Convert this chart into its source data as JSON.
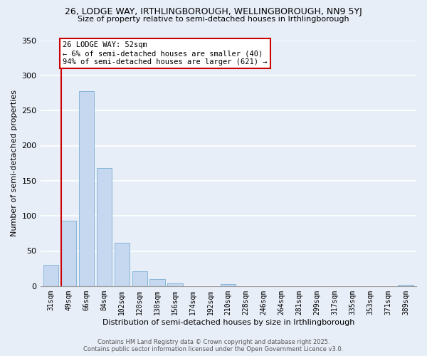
{
  "title_line1": "26, LODGE WAY, IRTHLINGBOROUGH, WELLINGBOROUGH, NN9 5YJ",
  "title_line2": "Size of property relative to semi-detached houses in Irthlingborough",
  "xlabel": "Distribution of semi-detached houses by size in Irthlingborough",
  "ylabel": "Number of semi-detached properties",
  "bar_labels": [
    "31sqm",
    "49sqm",
    "66sqm",
    "84sqm",
    "102sqm",
    "120sqm",
    "138sqm",
    "156sqm",
    "174sqm",
    "192sqm",
    "210sqm",
    "228sqm",
    "246sqm",
    "264sqm",
    "281sqm",
    "299sqm",
    "317sqm",
    "335sqm",
    "353sqm",
    "371sqm",
    "389sqm"
  ],
  "bar_values": [
    30,
    93,
    278,
    168,
    62,
    21,
    10,
    4,
    0,
    0,
    3,
    0,
    0,
    0,
    0,
    0,
    0,
    0,
    0,
    0,
    2
  ],
  "bar_color": "#c5d8f0",
  "bar_edge_color": "#7bafd4",
  "ylim": [
    0,
    350
  ],
  "yticks": [
    0,
    50,
    100,
    150,
    200,
    250,
    300,
    350
  ],
  "property_line_color": "#cc0000",
  "annotation_title": "26 LODGE WAY: 52sqm",
  "annotation_line1": "← 6% of semi-detached houses are smaller (40)",
  "annotation_line2": "94% of semi-detached houses are larger (621) →",
  "annotation_box_color": "#ffffff",
  "annotation_box_edge": "#cc0000",
  "footer_line1": "Contains HM Land Registry data © Crown copyright and database right 2025.",
  "footer_line2": "Contains public sector information licensed under the Open Government Licence v3.0.",
  "background_color": "#e8eef8",
  "grid_color": "#ffffff",
  "title_fontsize": 9,
  "subtitle_fontsize": 8,
  "ylabel_fontsize": 8,
  "xlabel_fontsize": 8,
  "tick_fontsize": 7,
  "footer_fontsize": 6
}
